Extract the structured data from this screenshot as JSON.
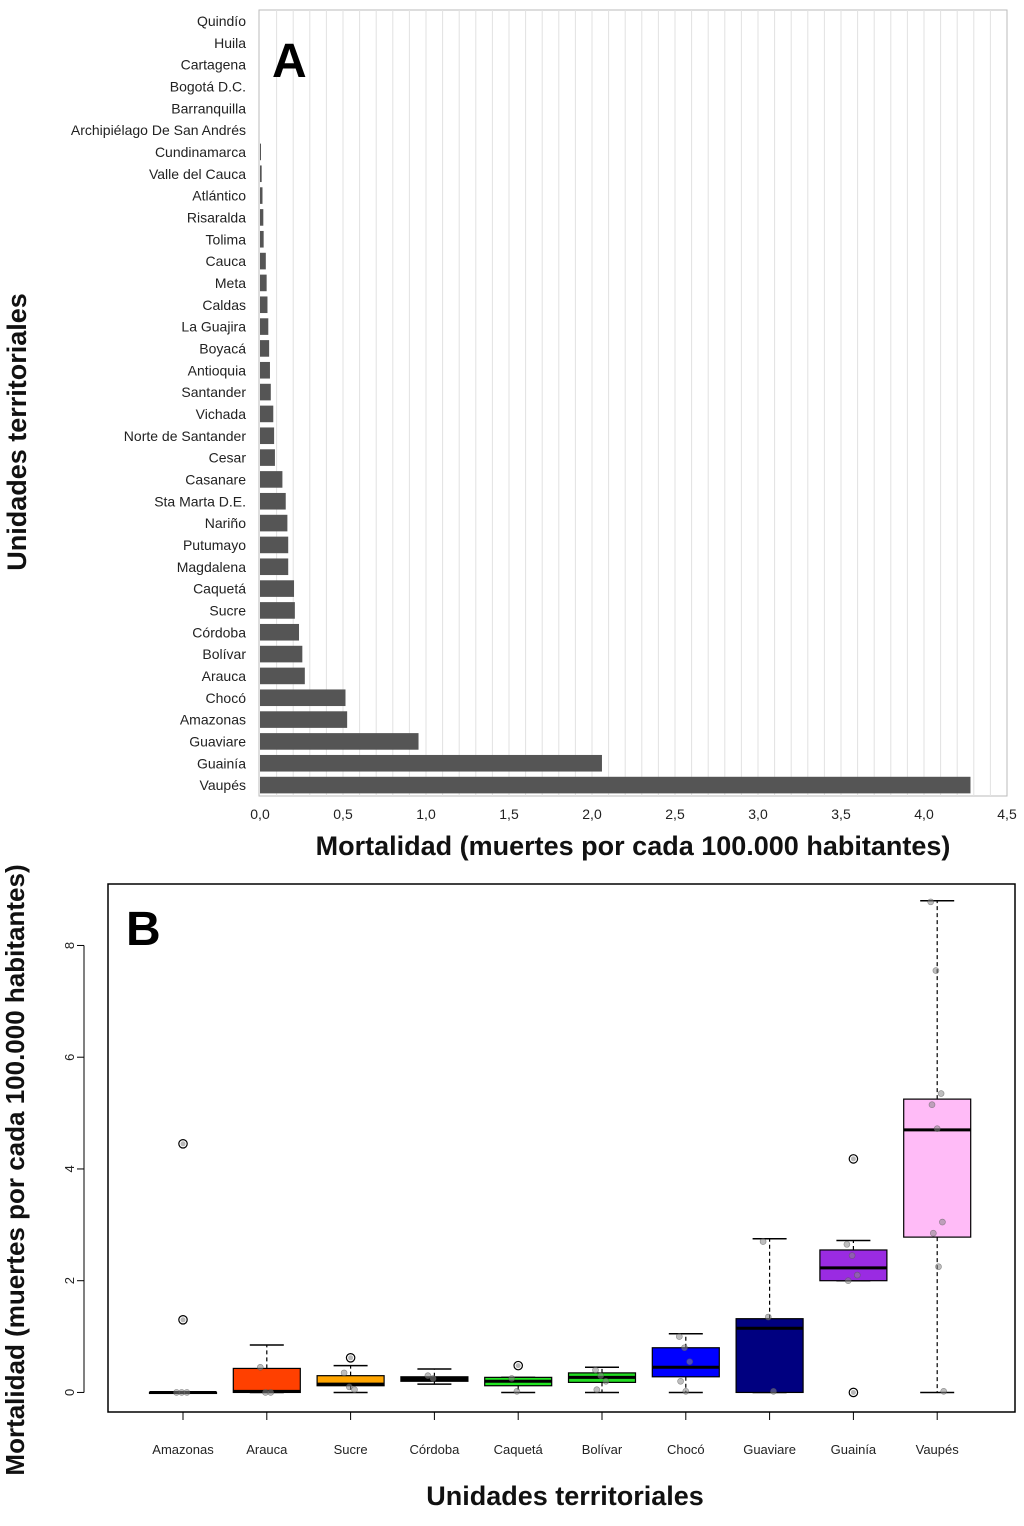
{
  "chart_data": [
    {
      "panel_label": "A",
      "type": "bar",
      "orientation": "horizontal",
      "categories": [
        "Quindío",
        "Huila",
        "Cartagena",
        "Bogotá D.C.",
        "Barranquilla",
        "Archipiélago De San Andrés",
        "Cundinamarca",
        "Valle del Cauca",
        "Atlántico",
        "Risaralda",
        "Tolima",
        "Cauca",
        "Meta",
        "Caldas",
        "La Guajira",
        "Boyacá",
        "Antioquia",
        "Santander",
        "Vichada",
        "Norte de Santander",
        "Cesar",
        "Casanare",
        "Sta Marta D.E.",
        "Nariño",
        "Putumayo",
        "Magdalena",
        "Caquetá",
        "Sucre",
        "Córdoba",
        "Bolívar",
        "Arauca",
        "Chocó",
        "Amazonas",
        "Guaviare",
        "Guainía",
        "Vaupés"
      ],
      "values": [
        0,
        0,
        0,
        0,
        0,
        0,
        0.005,
        0.01,
        0.015,
        0.02,
        0.022,
        0.035,
        0.04,
        0.045,
        0.05,
        0.055,
        0.06,
        0.065,
        0.08,
        0.085,
        0.09,
        0.135,
        0.155,
        0.165,
        0.17,
        0.17,
        0.205,
        0.21,
        0.235,
        0.255,
        0.27,
        0.515,
        0.525,
        0.955,
        2.06,
        4.28
      ],
      "xlabel": "Mortalidad (muertes por cada 100.000 habitantes)",
      "ylabel": "Unidades territoriales",
      "xlim": [
        0,
        4.5
      ],
      "xticks": [
        "0,0",
        "0,5",
        "1,0",
        "1,5",
        "2,0",
        "2,5",
        "3,0",
        "3,5",
        "4,0",
        "4,5"
      ],
      "bar_color": "#555555",
      "grid": "vertical"
    },
    {
      "panel_label": "B",
      "type": "boxplot",
      "categories": [
        "Amazonas",
        "Arauca",
        "Sucre",
        "Córdoba",
        "Caquetá",
        "Bolívar",
        "Chocó",
        "Guaviare",
        "Guainía",
        "Vaupés"
      ],
      "boxes": [
        {
          "min": 0,
          "q1": 0,
          "median": 0,
          "q3": 0,
          "max": 0,
          "outliers": [
            4.45,
            1.3
          ],
          "points": [
            0,
            0,
            0
          ],
          "color": "#000000"
        },
        {
          "min": 0,
          "q1": 0,
          "median": 0.02,
          "q3": 0.43,
          "max": 0.85,
          "outliers": [],
          "points": [
            0.45,
            0,
            0
          ],
          "color": "#ff4000"
        },
        {
          "min": 0,
          "q1": 0.12,
          "median": 0.15,
          "q3": 0.3,
          "max": 0.48,
          "outliers": [
            0.62
          ],
          "points": [
            0.35,
            0.1,
            0.05
          ],
          "color": "#ffa500"
        },
        {
          "min": 0.15,
          "q1": 0.2,
          "median": 0.23,
          "q3": 0.28,
          "max": 0.42,
          "outliers": [],
          "points": [
            0.3,
            0.25
          ],
          "color": "#000000"
        },
        {
          "min": 0,
          "q1": 0.12,
          "median": 0.2,
          "q3": 0.27,
          "max": 0.27,
          "outliers": [
            0.48
          ],
          "points": [
            0.25,
            0.02
          ],
          "color": "#22e622"
        },
        {
          "min": 0,
          "q1": 0.18,
          "median": 0.27,
          "q3": 0.35,
          "max": 0.45,
          "outliers": [],
          "points": [
            0.4,
            0.3,
            0.2,
            0.05
          ],
          "color": "#22dd22"
        },
        {
          "min": 0,
          "q1": 0.28,
          "median": 0.45,
          "q3": 0.8,
          "max": 1.05,
          "outliers": [],
          "points": [
            1.0,
            0.8,
            0.55,
            0.2,
            0.02
          ],
          "color": "#0000ff"
        },
        {
          "min": 0,
          "q1": 0,
          "median": 1.15,
          "q3": 1.32,
          "max": 2.75,
          "outliers": [],
          "points": [
            2.7,
            1.35,
            0.02
          ],
          "color": "#000080"
        },
        {
          "min": 2.0,
          "q1": 2.0,
          "median": 2.23,
          "q3": 2.55,
          "max": 2.72,
          "outliers": [
            4.18,
            0
          ],
          "points": [
            2.65,
            2.45,
            2.1,
            2.0
          ],
          "color": "#9a2be2"
        },
        {
          "min": 0,
          "q1": 2.78,
          "median": 4.7,
          "q3": 5.25,
          "max": 8.8,
          "outliers": [],
          "points": [
            8.78,
            7.55,
            5.35,
            5.15,
            4.72,
            3.05,
            2.85,
            2.25,
            0.02
          ],
          "color": "#ffbbf7"
        }
      ],
      "xlabel": "Unidades territoriales",
      "ylabel": "Mortalidad (muertes por cada 100.000 habitantes)",
      "ylim": [
        -0.35,
        9.1
      ],
      "yticks": [
        0,
        2,
        4,
        6,
        8
      ]
    }
  ]
}
